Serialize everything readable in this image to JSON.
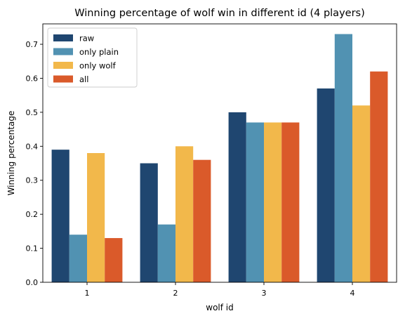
{
  "chart_data": {
    "type": "bar",
    "title": "Winning percentage of wolf win in different id (4 players)",
    "xlabel": "wolf id",
    "ylabel": "Winning percentage",
    "categories": [
      "1",
      "2",
      "3",
      "4"
    ],
    "ylim": [
      0,
      0.76
    ],
    "yticks": [
      "0.0",
      "0.1",
      "0.2",
      "0.3",
      "0.4",
      "0.5",
      "0.6",
      "0.7"
    ],
    "grid": false,
    "legend_position": "top-left",
    "series": [
      {
        "name": "raw",
        "color": "#1f4670",
        "values": [
          0.39,
          0.35,
          0.5,
          0.57
        ]
      },
      {
        "name": "only plain",
        "color": "#5192b2",
        "values": [
          0.14,
          0.17,
          0.47,
          0.73
        ]
      },
      {
        "name": "only wolf",
        "color": "#f2b84b",
        "values": [
          0.38,
          0.4,
          0.47,
          0.52
        ]
      },
      {
        "name": "all",
        "color": "#da5a2a",
        "values": [
          0.13,
          0.36,
          0.47,
          0.62
        ]
      }
    ]
  }
}
